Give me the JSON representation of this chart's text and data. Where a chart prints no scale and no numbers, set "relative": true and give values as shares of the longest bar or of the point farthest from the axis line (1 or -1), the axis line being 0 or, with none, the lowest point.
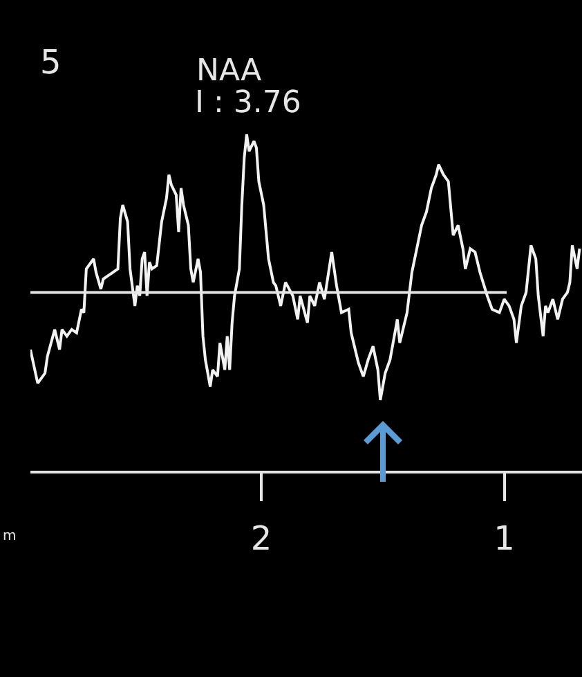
{
  "chart_data": {
    "type": "line",
    "relative": true,
    "tick_labels": "x",
    "grid": false,
    "xlim": [
      2.95,
      0.68
    ],
    "xticks": [
      2,
      1
    ],
    "annotations": [
      "5",
      "NAA",
      "I : 3.76",
      "m"
    ],
    "series": [
      {
        "color": "#f2f2f2",
        "x": [
          2.95,
          2.92,
          2.89,
          2.88,
          2.85,
          2.83,
          2.82,
          2.8,
          2.78,
          2.76,
          2.74,
          2.73,
          2.72,
          2.7,
          2.69,
          2.68,
          2.66,
          2.65,
          2.63,
          2.61,
          2.59,
          2.58,
          2.57,
          2.55,
          2.54,
          2.52,
          2.51,
          2.5,
          2.49,
          2.48,
          2.47,
          2.46,
          2.45,
          2.43,
          2.41,
          2.39,
          2.38,
          2.37,
          2.35,
          2.34,
          2.33,
          2.32,
          2.3,
          2.29,
          2.28,
          2.26,
          2.25,
          2.24,
          2.23,
          2.21,
          2.2,
          2.18,
          2.17,
          2.15,
          2.14,
          2.13,
          2.12,
          2.11,
          2.09,
          2.08,
          2.07,
          2.06,
          2.05,
          2.03,
          2.02,
          2.01,
          1.99,
          1.98,
          1.97,
          1.95,
          1.94,
          1.92,
          1.9,
          1.87,
          1.85,
          1.84,
          1.81,
          1.8,
          1.78,
          1.76,
          1.74,
          1.71,
          1.69,
          1.67,
          1.64,
          1.63,
          1.6,
          1.58,
          1.56,
          1.54,
          1.52,
          1.51,
          1.49,
          1.47,
          1.45,
          1.44,
          1.43,
          1.4,
          1.38,
          1.36,
          1.34,
          1.32,
          1.3,
          1.28,
          1.27,
          1.25,
          1.23,
          1.22,
          1.21,
          1.19,
          1.17,
          1.16,
          1.14,
          1.12,
          1.1,
          1.07,
          1.05,
          1.02,
          1.0,
          0.98,
          0.96,
          0.95,
          0.93,
          0.91,
          0.9,
          0.89,
          0.87,
          0.86,
          0.84,
          0.83,
          0.82,
          0.8,
          0.78,
          0.76,
          0.74,
          0.73,
          0.72,
          0.7,
          0.69
        ],
        "values": [
          0.36,
          0.26,
          0.29,
          0.34,
          0.42,
          0.36,
          0.42,
          0.4,
          0.42,
          0.41,
          0.48,
          0.47,
          0.6,
          0.62,
          0.63,
          0.59,
          0.54,
          0.57,
          0.58,
          0.59,
          0.6,
          0.75,
          0.79,
          0.74,
          0.6,
          0.49,
          0.55,
          0.52,
          0.63,
          0.65,
          0.52,
          0.62,
          0.6,
          0.61,
          0.74,
          0.81,
          0.88,
          0.85,
          0.82,
          0.71,
          0.84,
          0.79,
          0.73,
          0.6,
          0.56,
          0.63,
          0.59,
          0.4,
          0.33,
          0.25,
          0.3,
          0.28,
          0.38,
          0.3,
          0.4,
          0.3,
          0.44,
          0.52,
          0.6,
          0.79,
          0.93,
          1.0,
          0.95,
          0.98,
          0.96,
          0.86,
          0.79,
          0.71,
          0.63,
          0.56,
          0.55,
          0.49,
          0.56,
          0.52,
          0.45,
          0.52,
          0.44,
          0.52,
          0.49,
          0.56,
          0.51,
          0.65,
          0.55,
          0.47,
          0.48,
          0.41,
          0.32,
          0.28,
          0.33,
          0.37,
          0.3,
          0.21,
          0.29,
          0.33,
          0.41,
          0.45,
          0.38,
          0.47,
          0.59,
          0.66,
          0.73,
          0.77,
          0.84,
          0.88,
          0.91,
          0.88,
          0.86,
          0.78,
          0.7,
          0.73,
          0.66,
          0.6,
          0.66,
          0.65,
          0.59,
          0.52,
          0.48,
          0.47,
          0.51,
          0.49,
          0.45,
          0.38,
          0.49,
          0.53,
          0.6,
          0.67,
          0.63,
          0.52,
          0.4,
          0.49,
          0.47,
          0.51,
          0.45,
          0.51,
          0.53,
          0.56,
          0.67,
          0.6,
          0.66
        ]
      },
      {
        "type": "line",
        "color": "#e6e6e6",
        "x": [
          2.95,
          0.99
        ],
        "values": [
          0.53,
          0.53
        ]
      }
    ]
  }
}
